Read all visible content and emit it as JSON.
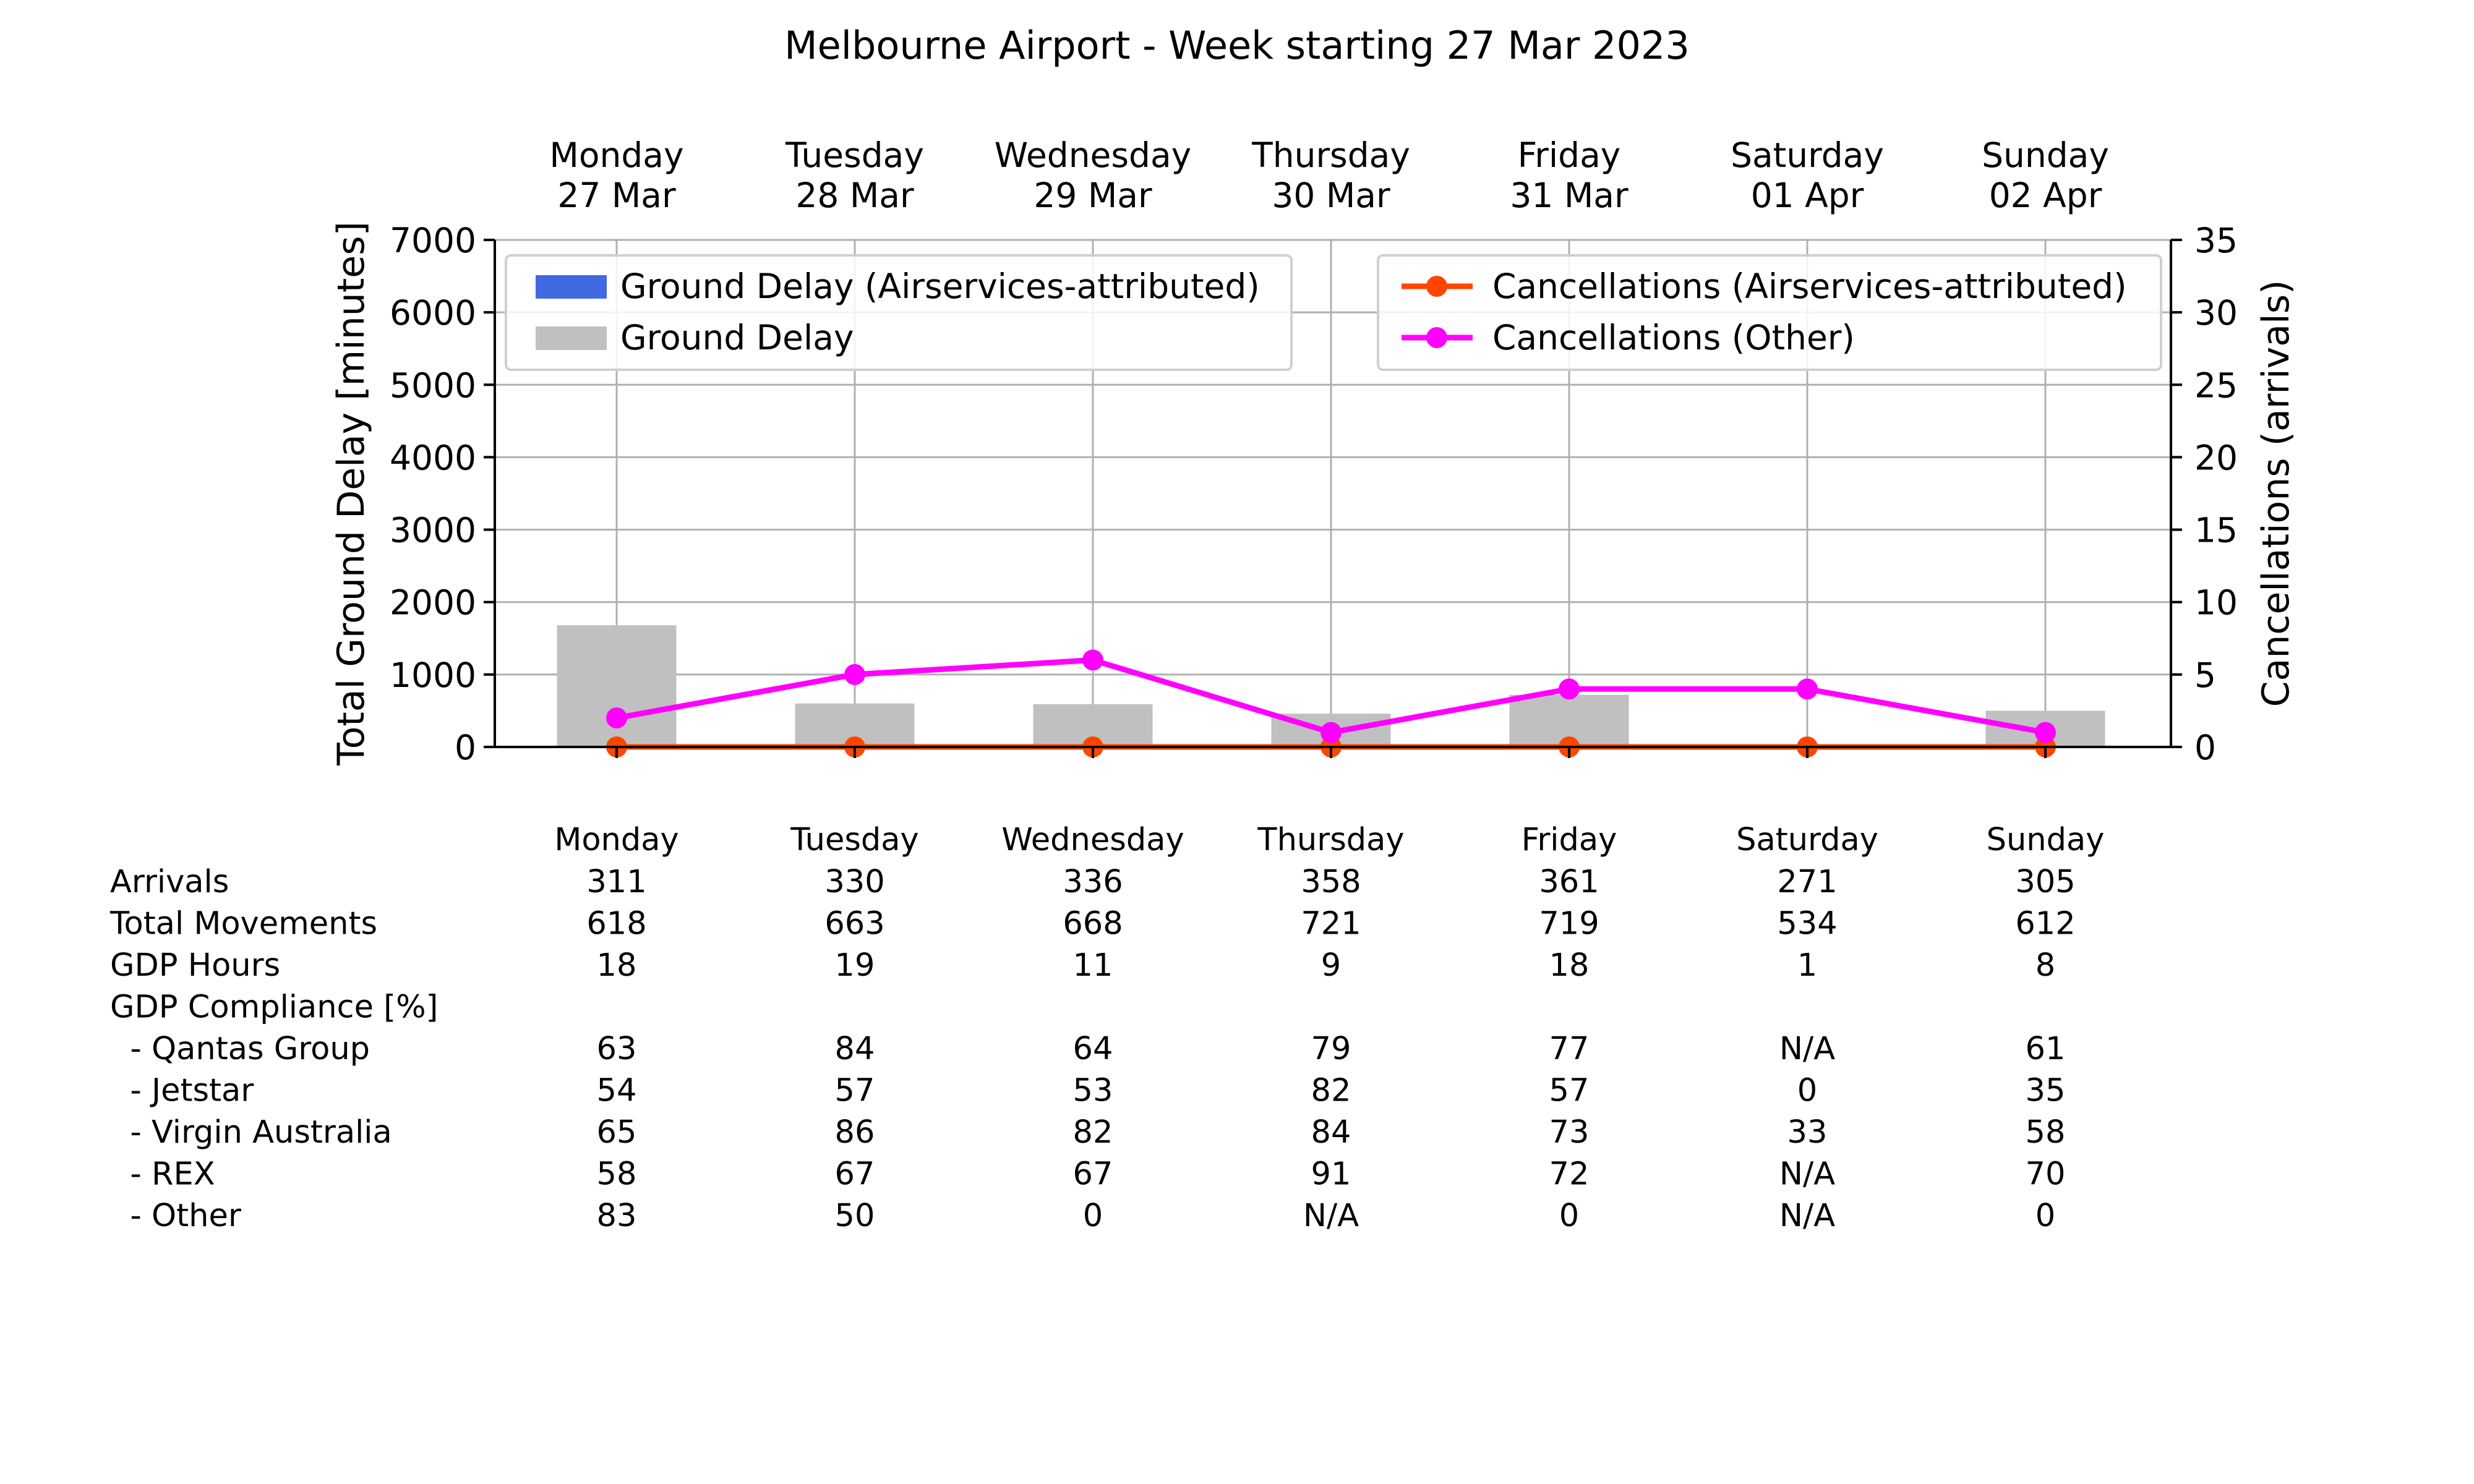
{
  "chart_data": {
    "type": "bar",
    "title": "Melbourne Airport - Week starting 27 Mar 2023",
    "days": [
      {
        "name": "Monday",
        "date": "27 Mar"
      },
      {
        "name": "Tuesday",
        "date": "28 Mar"
      },
      {
        "name": "Wednesday",
        "date": "29 Mar"
      },
      {
        "name": "Thursday",
        "date": "30 Mar"
      },
      {
        "name": "Friday",
        "date": "31 Mar"
      },
      {
        "name": "Saturday",
        "date": "01 Apr"
      },
      {
        "name": "Sunday",
        "date": "02 Apr"
      }
    ],
    "ylabel_left": "Total Ground Delay [minutes]",
    "ylabel_right": "Cancellations (arrivals)",
    "ylim_left": [
      0,
      7000
    ],
    "ylim_right": [
      0,
      35
    ],
    "yticks_left": [
      "0",
      "1000",
      "2000",
      "3000",
      "4000",
      "5000",
      "6000",
      "7000"
    ],
    "yticks_right": [
      "0",
      "5",
      "10",
      "15",
      "20",
      "25",
      "30",
      "35"
    ],
    "grid": true,
    "bar_series": [
      {
        "name": "Ground Delay (Airservices-attributed)",
        "color": "#4169e1",
        "values": [
          0,
          0,
          0,
          0,
          0,
          0,
          0
        ]
      },
      {
        "name": "Ground Delay",
        "color": "#c0c0c0",
        "values": [
          1680,
          600,
          590,
          460,
          720,
          10,
          500
        ]
      }
    ],
    "line_series": [
      {
        "name": "Cancellations (Airservices-attributed)",
        "color": "#ff4500",
        "values": [
          0,
          0,
          0,
          0,
          0,
          0,
          0
        ]
      },
      {
        "name": "Cancellations (Other)",
        "color": "#ff00ff",
        "values": [
          2,
          5,
          6,
          1,
          4,
          4,
          1
        ]
      }
    ],
    "legend_left_position": "upper-left",
    "legend_right_position": "upper-right"
  },
  "table": {
    "header": [
      "Monday",
      "Tuesday",
      "Wednesday",
      "Thursday",
      "Friday",
      "Saturday",
      "Sunday"
    ],
    "rows": [
      {
        "label": "Arrivals",
        "values": [
          "311",
          "330",
          "336",
          "358",
          "361",
          "271",
          "305"
        ]
      },
      {
        "label": "Total Movements",
        "values": [
          "618",
          "663",
          "668",
          "721",
          "719",
          "534",
          "612"
        ]
      },
      {
        "label": "GDP Hours",
        "values": [
          "18",
          "19",
          "11",
          "9",
          "18",
          "1",
          "8"
        ]
      },
      {
        "label": "GDP Compliance [%]",
        "values": [
          "",
          "",
          "",
          "",
          "",
          "",
          ""
        ]
      },
      {
        "label": "  - Qantas Group",
        "values": [
          "63",
          "84",
          "64",
          "79",
          "77",
          "N/A",
          "61"
        ]
      },
      {
        "label": "  - Jetstar",
        "values": [
          "54",
          "57",
          "53",
          "82",
          "57",
          "0",
          "35"
        ]
      },
      {
        "label": "  - Virgin Australia",
        "values": [
          "65",
          "86",
          "82",
          "84",
          "73",
          "33",
          "58"
        ]
      },
      {
        "label": "  - REX",
        "values": [
          "58",
          "67",
          "67",
          "91",
          "72",
          "N/A",
          "70"
        ]
      },
      {
        "label": "  - Other",
        "values": [
          "83",
          "50",
          "0",
          "N/A",
          "0",
          "N/A",
          "0"
        ]
      }
    ]
  }
}
